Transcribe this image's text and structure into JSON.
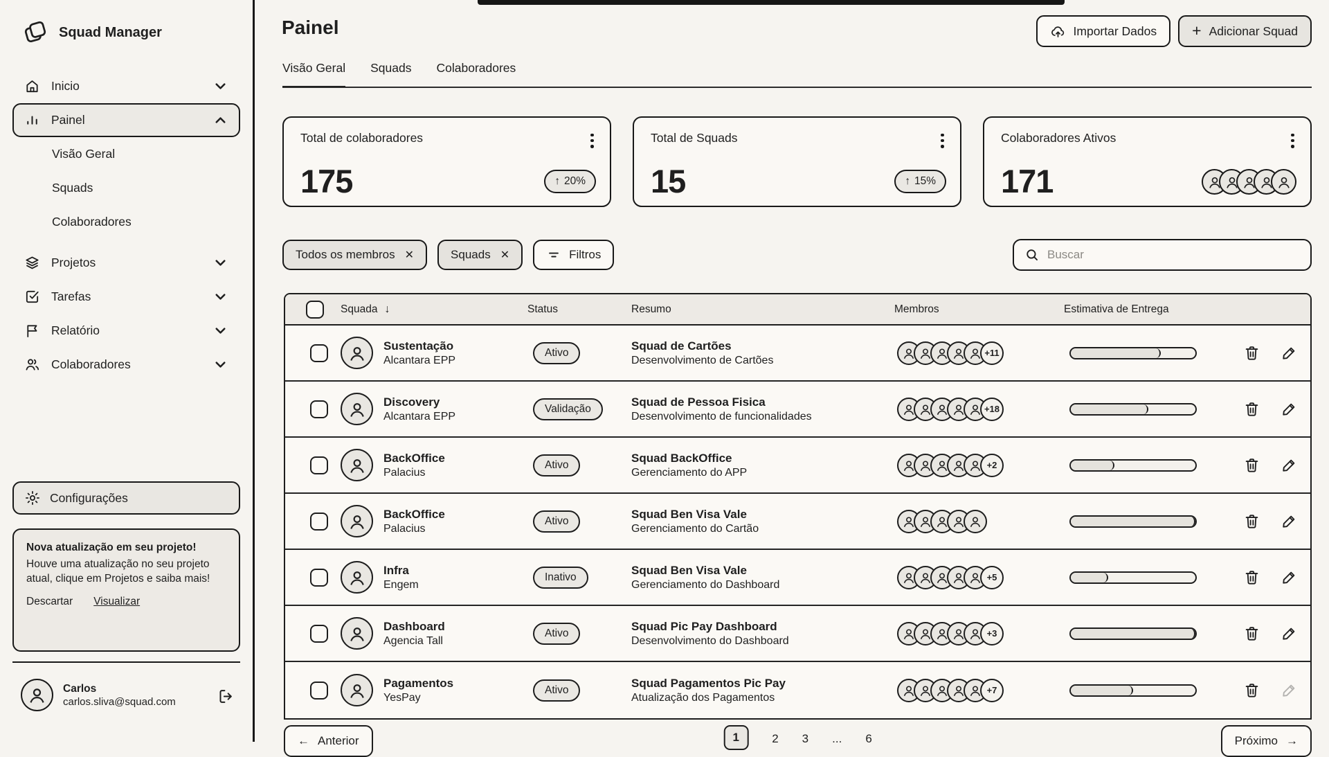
{
  "brand": {
    "name": "Squad Manager"
  },
  "sidebar": {
    "items": [
      {
        "label": "Inicio"
      },
      {
        "label": "Painel"
      },
      {
        "label": "Visão Geral"
      },
      {
        "label": "Squads"
      },
      {
        "label": "Colaboradores"
      },
      {
        "label": "Projetos"
      },
      {
        "label": "Tarefas"
      },
      {
        "label": "Relatório"
      },
      {
        "label": "Colaboradores"
      }
    ],
    "settings_label": "Configurações",
    "notification": {
      "title": "Nova atualização em seu projeto!",
      "body": "Houve uma atualização no seu projeto atual, clique em Projetos e saiba mais!",
      "dismiss_label": "Descartar",
      "view_label": "Visualizar"
    },
    "user": {
      "name": "Carlos",
      "email": "carlos.sliva@squad.com"
    }
  },
  "header": {
    "title": "Painel",
    "tabs": [
      {
        "label": "Visão Geral"
      },
      {
        "label": "Squads"
      },
      {
        "label": "Colaboradores"
      }
    ],
    "import_button": "Importar Dados",
    "add_button": "Adicionar Squad"
  },
  "cards": [
    {
      "label": "Total de colaboradores",
      "value": "175",
      "trend": "20%"
    },
    {
      "label": "Total de Squads",
      "value": "15",
      "trend": "15%"
    },
    {
      "label": "Colaboradores Ativos",
      "value": "171",
      "avatar_count": 5
    }
  ],
  "filters": {
    "chips": [
      {
        "label": "Todos os membros"
      },
      {
        "label": "Squads"
      }
    ],
    "filters_button": "Filtros",
    "search_placeholder": "Buscar"
  },
  "table": {
    "columns": [
      "Squada",
      "Status",
      "Resumo",
      "Membros",
      "Estimativa de Entrega"
    ],
    "rows": [
      {
        "name": "Sustentação",
        "company": "Alcantara EPP",
        "status": "Ativo",
        "summary": "Squad de Cartões",
        "summary_sub": "Desenvolvimento de Cartões",
        "extra": "+11",
        "progress": 72
      },
      {
        "name": "Discovery",
        "company": "Alcantara EPP",
        "status": "Validação",
        "summary": "Squad de Pessoa Fisica",
        "summary_sub": "Desenvolvimento de funcionalidades",
        "extra": "+18",
        "progress": 62
      },
      {
        "name": "BackOffice",
        "company": "Palacius",
        "status": "Ativo",
        "summary": "Squad BackOffice",
        "summary_sub": "Gerenciamento do APP",
        "extra": "+2",
        "progress": 35
      },
      {
        "name": "BackOffice",
        "company": "Palacius",
        "status": "Ativo",
        "summary": "Squad Ben Visa Vale",
        "summary_sub": "Gerenciamento do Cartão",
        "extra": "",
        "progress": 100
      },
      {
        "name": "Infra",
        "company": "Engem",
        "status": "Inativo",
        "summary": "Squad Ben Visa Vale",
        "summary_sub": "Gerenciamento do Dashboard",
        "extra": "+5",
        "progress": 30
      },
      {
        "name": "Dashboard",
        "company": "Agencia Tall",
        "status": "Ativo",
        "summary": "Squad Pic Pay Dashboard",
        "summary_sub": "Desenvolvimento do Dashboard",
        "extra": "+3",
        "progress": 100
      },
      {
        "name": "Pagamentos",
        "company": "YesPay",
        "status": "Ativo",
        "summary": "Squad Pagamentos Pic Pay",
        "summary_sub": "Atualização dos Pagamentos",
        "extra": "+7",
        "progress": 50
      }
    ]
  },
  "pagination": {
    "prev": "Anterior",
    "pages": [
      "1",
      "2",
      "3",
      "...",
      "6"
    ],
    "active": "1",
    "next": "Próximo"
  },
  "icons": {
    "trend_up": "↑",
    "sort_desc": "↓",
    "close": "✕",
    "plus": "+",
    "arrow_left": "←",
    "arrow_right": "→"
  },
  "colors": {
    "ink": "#1f1f1f",
    "paper": "#f6f4f0",
    "panel": "#fbf9f5",
    "fill_light": "#e9e7e2",
    "chip": "#e5e3de",
    "table_header": "#edeae5"
  }
}
